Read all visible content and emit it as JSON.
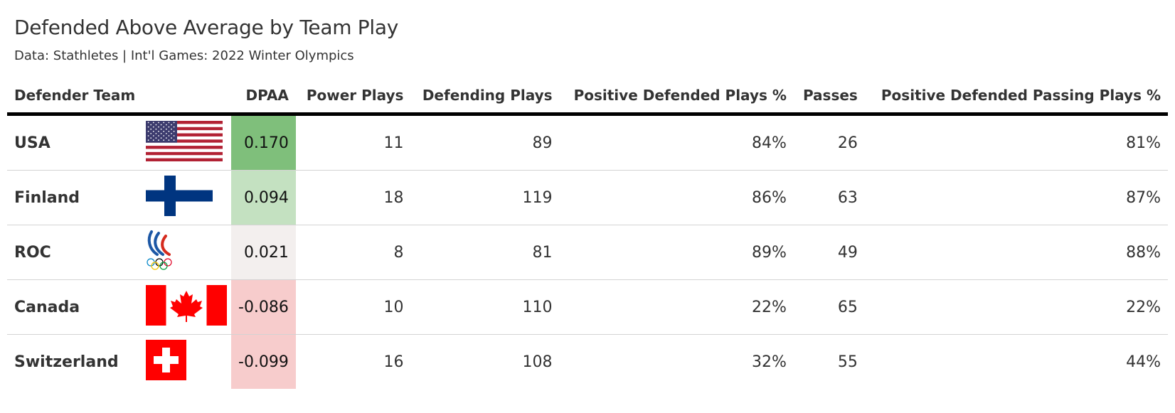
{
  "header": {
    "title": "Defended Above Average by Team Play",
    "subtitle": "Data: Stathletes | Int'l Games: 2022 Winter Olympics"
  },
  "columns": {
    "team": "Defender Team",
    "flag": "",
    "dpaa": "DPAA",
    "power_plays": "Power Plays",
    "defending_plays": "Defending Plays",
    "positive_defended_pct": "Positive Defended Plays %",
    "passes": "Passes",
    "positive_passing_pct": "Positive Defended Passing Plays %"
  },
  "colors": {
    "dpaa_scale": [
      "#7fbf7b",
      "#c4e1c1",
      "#f3efee",
      "#f7cccc",
      "#f7cccc"
    ]
  },
  "chart_data": {
    "type": "table",
    "title": "Defended Above Average by Team Play",
    "subtitle": "Data: Stathletes | Int'l Games: 2022 Winter Olympics",
    "rows": [
      {
        "team": "USA",
        "flag": "usa-flag",
        "dpaa": "0.170",
        "power_plays": "11",
        "defending_plays": "89",
        "positive_defended_pct": "84%",
        "passes": "26",
        "positive_passing_pct": "81%"
      },
      {
        "team": "Finland",
        "flag": "finland-flag",
        "dpaa": "0.094",
        "power_plays": "18",
        "defending_plays": "119",
        "positive_defended_pct": "86%",
        "passes": "63",
        "positive_passing_pct": "87%"
      },
      {
        "team": "ROC",
        "flag": "roc-flag",
        "dpaa": "0.021",
        "power_plays": "8",
        "defending_plays": "81",
        "positive_defended_pct": "89%",
        "passes": "49",
        "positive_passing_pct": "88%"
      },
      {
        "team": "Canada",
        "flag": "canada-flag",
        "dpaa": "-0.086",
        "power_plays": "10",
        "defending_plays": "110",
        "positive_defended_pct": "22%",
        "passes": "65",
        "positive_passing_pct": "22%"
      },
      {
        "team": "Switzerland",
        "flag": "switzerland-flag",
        "dpaa": "-0.099",
        "power_plays": "16",
        "defending_plays": "108",
        "positive_defended_pct": "32%",
        "passes": "55",
        "positive_passing_pct": "44%"
      }
    ]
  }
}
